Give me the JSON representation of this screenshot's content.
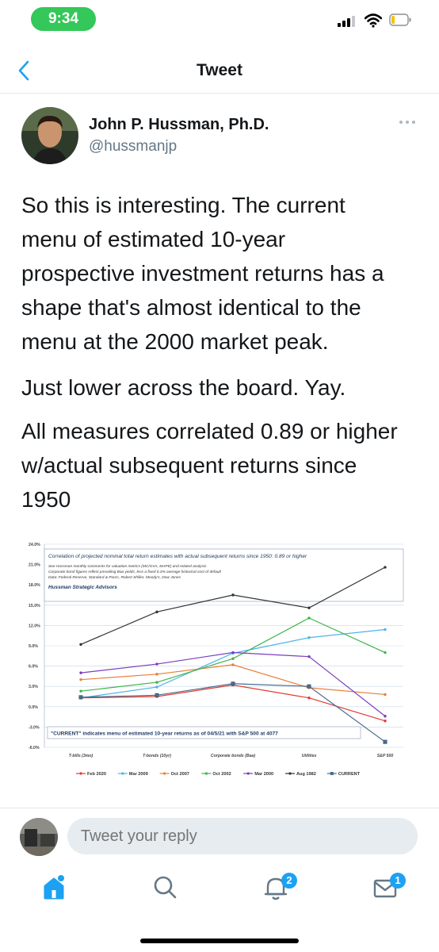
{
  "status_bar": {
    "time": "9:34"
  },
  "nav": {
    "title": "Tweet"
  },
  "author": {
    "name": "John P. Hussman, Ph.D.",
    "handle": "@hussmanjp"
  },
  "tweet": {
    "paragraphs": [
      [
        "So this is interesting. The current",
        "menu of estimated 10-year",
        "prospective investment returns has a",
        "shape that's almost identical to the",
        "menu at the 2000 market peak."
      ],
      [
        "Just lower across the board. Yay."
      ],
      [
        "All measures correlated 0.89 or higher",
        "w/actual subsequent returns since",
        "1950"
      ]
    ]
  },
  "chart_data": {
    "type": "line",
    "title": "Correlation of projected nominal total return estimates with actual subsequent returns since 1950: 0.89 or higher",
    "notes": [
      "See Hussman monthly comments for valuation metrics (MC/GVA, MAPE) and related analysis",
      "Corporate bond figures reflect prevailing Baa yields, less a fixed 0.3% average historical cost of default",
      "Data: Federal Reserve, Standard & Poors, Robert Shiller, Moody's, Dow Jones"
    ],
    "brand": "Hussman Strategic Advisors",
    "annotation": "\"CURRENT\" indicates menu of estimated 10-year returns as of 04/5/21 with S&P 500 at 4077",
    "categories": [
      "T-bills (3mo)",
      "T-bonds (10yr)",
      "Corporate bonds (Baa)",
      "Utilities",
      "S&P 500"
    ],
    "y_ticks": [
      "24.0%",
      "21.0%",
      "18.0%",
      "15.0%",
      "12.0%",
      "9.0%",
      "6.0%",
      "3.0%",
      "0.0%",
      "-3.0%",
      "-6.0%"
    ],
    "ylim": [
      -6,
      24
    ],
    "grid": true,
    "legend_position": "bottom",
    "series": [
      {
        "name": "Feb 2020",
        "color": "#e03c31",
        "values": [
          1.3,
          1.5,
          3.2,
          1.3,
          -2.1
        ]
      },
      {
        "name": "Mar 2009",
        "color": "#4fb3e8",
        "values": [
          1.3,
          2.9,
          7.9,
          10.2,
          11.4
        ]
      },
      {
        "name": "Oct 2007",
        "color": "#e8803a",
        "values": [
          4.0,
          4.8,
          6.2,
          2.8,
          1.8
        ]
      },
      {
        "name": "Oct 2002",
        "color": "#3cb54a",
        "values": [
          2.3,
          3.6,
          7.1,
          13.1,
          8.0
        ]
      },
      {
        "name": "Mar 2000",
        "color": "#7a3dbf",
        "values": [
          5.0,
          6.3,
          8.0,
          7.4,
          -1.4
        ]
      },
      {
        "name": "Aug 1982",
        "color": "#333333",
        "values": [
          9.2,
          14.0,
          16.5,
          14.6,
          20.6
        ]
      },
      {
        "name": "CURRENT",
        "color": "#4a6a8a",
        "values": [
          1.4,
          1.7,
          3.4,
          3.0,
          -5.2
        ]
      }
    ]
  },
  "reply": {
    "placeholder": "Tweet your reply"
  },
  "tabs": {
    "notifications_badge": "2",
    "messages_badge": "1"
  }
}
